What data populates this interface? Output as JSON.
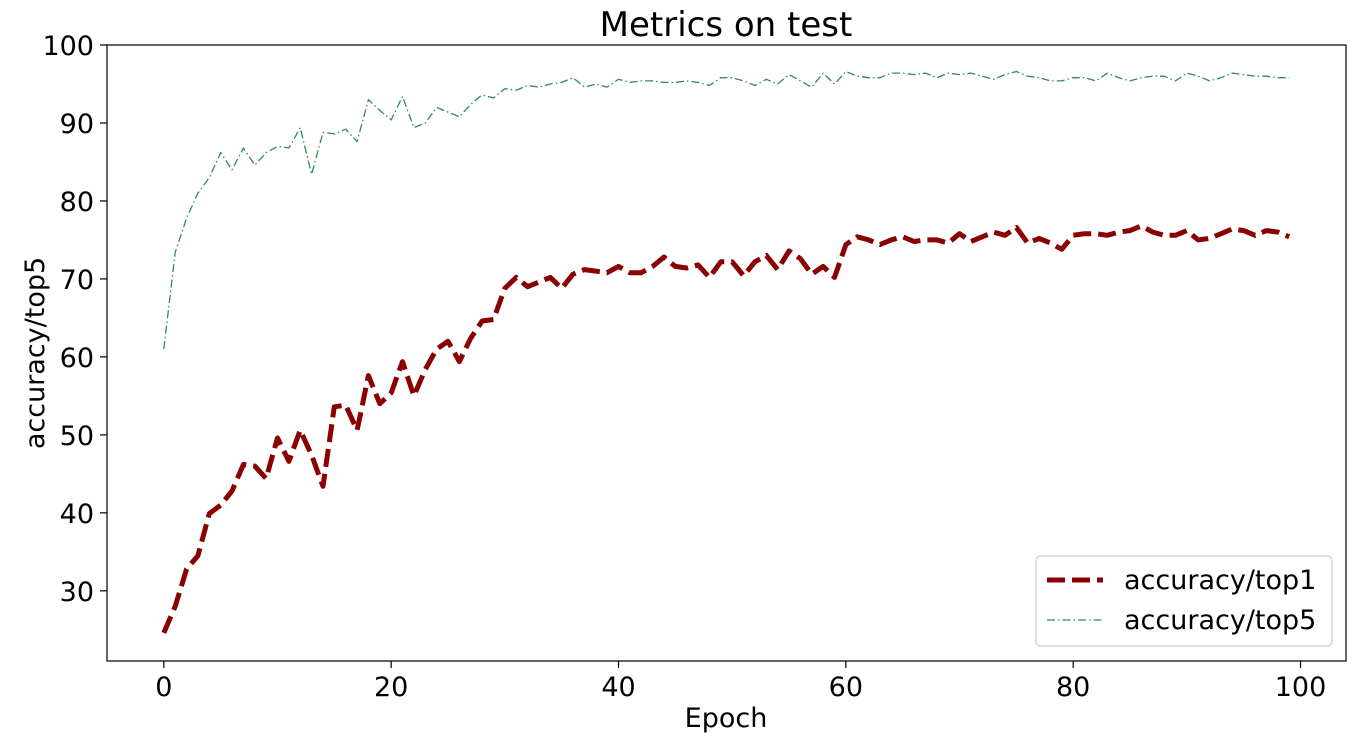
{
  "chart_data": {
    "type": "line",
    "title": "Metrics on test",
    "xlabel": "Epoch",
    "ylabel": "accuracy/top5",
    "xlim": [
      -5,
      104
    ],
    "ylim": [
      21,
      100
    ],
    "xticks": [
      0,
      20,
      40,
      60,
      80,
      100
    ],
    "yticks": [
      30,
      40,
      50,
      60,
      70,
      80,
      90,
      100
    ],
    "grid": false,
    "legend_position": "lower-right",
    "x": [
      0,
      1,
      2,
      3,
      4,
      5,
      6,
      7,
      8,
      9,
      10,
      11,
      12,
      13,
      14,
      15,
      16,
      17,
      18,
      19,
      20,
      21,
      22,
      23,
      24,
      25,
      26,
      27,
      28,
      29,
      30,
      31,
      32,
      33,
      34,
      35,
      36,
      37,
      38,
      39,
      40,
      41,
      42,
      43,
      44,
      45,
      46,
      47,
      48,
      49,
      50,
      51,
      52,
      53,
      54,
      55,
      56,
      57,
      58,
      59,
      60,
      61,
      62,
      63,
      64,
      65,
      66,
      67,
      68,
      69,
      70,
      71,
      72,
      73,
      74,
      75,
      76,
      77,
      78,
      79,
      80,
      81,
      82,
      83,
      84,
      85,
      86,
      87,
      88,
      89,
      90,
      91,
      92,
      93,
      94,
      95,
      96,
      97,
      98,
      99
    ],
    "series": [
      {
        "name": "accuracy/top1",
        "color": "#8b0000",
        "style": "dashed",
        "values": [
          24.6,
          28.0,
          32.8,
          34.5,
          39.9,
          41.0,
          42.8,
          46.2,
          46.0,
          44.4,
          49.6,
          46.6,
          50.6,
          47.4,
          43.4,
          53.6,
          53.8,
          50.6,
          57.6,
          54.0,
          55.4,
          59.4,
          55.0,
          58.4,
          61.0,
          62.0,
          59.4,
          62.4,
          64.6,
          64.8,
          68.8,
          70.2,
          69.0,
          69.6,
          70.2,
          68.8,
          70.6,
          71.2,
          71.0,
          70.8,
          71.6,
          70.8,
          70.8,
          71.6,
          72.8,
          71.6,
          71.4,
          71.8,
          70.2,
          72.2,
          72.2,
          70.4,
          72.2,
          73.0,
          71.2,
          73.6,
          72.6,
          70.6,
          71.6,
          70.2,
          74.4,
          75.4,
          75.0,
          74.4,
          75.0,
          75.4,
          74.8,
          75.0,
          75.0,
          74.6,
          75.8,
          74.8,
          75.4,
          76.0,
          75.6,
          76.6,
          74.6,
          75.2,
          74.6,
          73.8,
          75.6,
          75.8,
          75.8,
          75.6,
          76.0,
          76.2,
          76.8,
          76.0,
          75.6,
          75.6,
          76.2,
          75.0,
          75.2,
          75.8,
          76.4,
          76.2,
          75.6,
          76.2,
          76.0,
          75.4
        ]
      },
      {
        "name": "accuracy/top5",
        "color": "#2e8b57",
        "style": "dashdot",
        "values": [
          61.0,
          73.4,
          77.8,
          81.0,
          83.0,
          86.2,
          84.0,
          86.8,
          84.6,
          86.2,
          87.0,
          86.8,
          89.4,
          83.4,
          88.8,
          88.6,
          89.2,
          87.6,
          93.0,
          91.6,
          90.4,
          93.4,
          89.4,
          90.0,
          92.0,
          91.4,
          90.8,
          92.4,
          93.6,
          93.2,
          94.4,
          94.2,
          94.8,
          94.6,
          95.0,
          95.2,
          95.8,
          94.6,
          95.0,
          94.6,
          95.6,
          95.2,
          95.4,
          95.4,
          95.2,
          95.2,
          95.4,
          95.2,
          94.8,
          95.8,
          95.8,
          95.4,
          94.8,
          95.6,
          95.0,
          96.2,
          95.4,
          94.6,
          96.4,
          95.0,
          96.6,
          96.0,
          95.8,
          95.8,
          96.4,
          96.4,
          96.2,
          96.4,
          95.8,
          96.4,
          96.2,
          96.4,
          96.0,
          95.6,
          96.2,
          96.6,
          96.0,
          95.8,
          95.4,
          95.4,
          95.8,
          95.8,
          95.4,
          96.4,
          95.8,
          95.4,
          95.8,
          96.0,
          96.0,
          95.4,
          96.4,
          96.0,
          95.4,
          95.8,
          96.4,
          96.2,
          96.0,
          96.0,
          95.8,
          95.8
        ]
      }
    ]
  }
}
